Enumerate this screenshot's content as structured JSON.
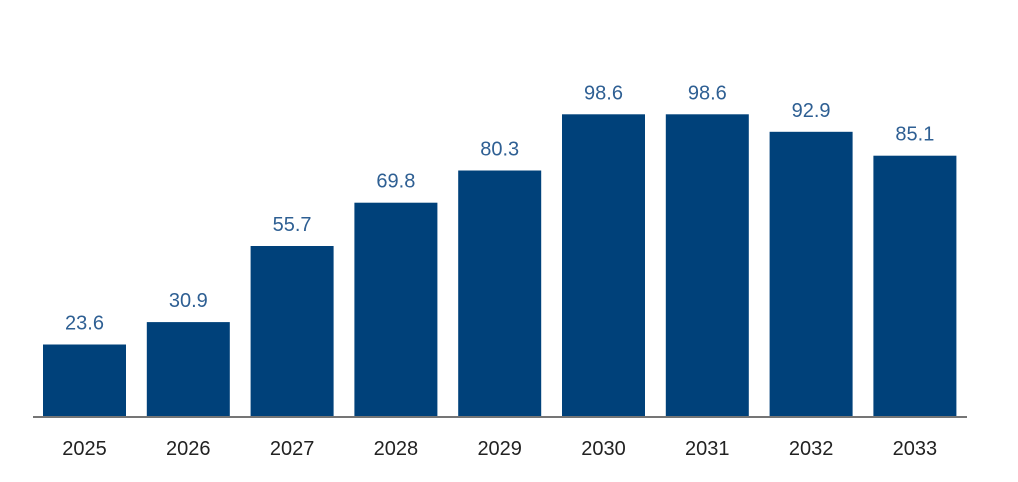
{
  "chart_data": {
    "type": "bar",
    "categories": [
      "2025",
      "2026",
      "2027",
      "2028",
      "2029",
      "2030",
      "2031",
      "2032",
      "2033"
    ],
    "values": [
      23.6,
      30.9,
      55.7,
      69.8,
      80.3,
      98.6,
      98.6,
      92.9,
      85.1
    ],
    "title": "",
    "xlabel": "",
    "ylabel": "",
    "ylim": [
      0,
      100
    ],
    "grid": false,
    "data_labels": true,
    "colors": {
      "bar": "#00417a",
      "data_label": "#2e5f93",
      "tick_label": "#222222",
      "axis": "#757575"
    }
  }
}
